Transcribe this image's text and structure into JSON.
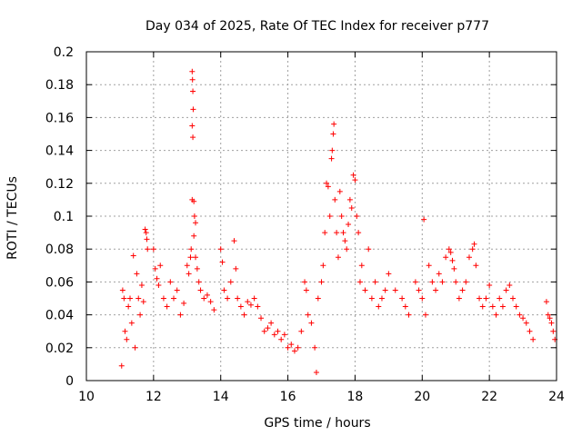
{
  "chart_data": {
    "type": "scatter",
    "title": "Day 034 of 2025, Rate Of TEC Index for receiver p777",
    "xlabel": "GPS time / hours",
    "ylabel": "ROTI / TECUs",
    "xlim": [
      10,
      24
    ],
    "ylim": [
      0,
      0.2
    ],
    "xticks": [
      10,
      12,
      14,
      16,
      18,
      20,
      22,
      24
    ],
    "yticks": [
      0,
      0.02,
      0.04,
      0.06,
      0.08,
      0.1,
      0.12,
      0.14,
      0.16,
      0.18,
      0.2
    ],
    "xtick_labels": [
      "10",
      "12",
      "14",
      "16",
      "18",
      "20",
      "22",
      "24"
    ],
    "ytick_labels": [
      "0",
      "0.02",
      "0.04",
      "0.06",
      "0.08",
      "0.1",
      "0.12",
      "0.14",
      "0.16",
      "0.18",
      "0.2"
    ],
    "grid": true,
    "marker": "+",
    "series": [
      {
        "name": "ROTI",
        "color": "#ff0000",
        "points": [
          [
            11.05,
            0.009
          ],
          [
            11.08,
            0.055
          ],
          [
            11.12,
            0.05
          ],
          [
            11.15,
            0.03
          ],
          [
            11.2,
            0.025
          ],
          [
            11.25,
            0.045
          ],
          [
            11.3,
            0.05
          ],
          [
            11.35,
            0.035
          ],
          [
            11.4,
            0.076
          ],
          [
            11.45,
            0.02
          ],
          [
            11.5,
            0.065
          ],
          [
            11.55,
            0.05
          ],
          [
            11.6,
            0.04
          ],
          [
            11.65,
            0.058
          ],
          [
            11.7,
            0.048
          ],
          [
            11.75,
            0.092
          ],
          [
            11.78,
            0.09
          ],
          [
            11.8,
            0.086
          ],
          [
            11.82,
            0.08
          ],
          [
            12.0,
            0.08
          ],
          [
            12.05,
            0.068
          ],
          [
            12.1,
            0.062
          ],
          [
            12.15,
            0.058
          ],
          [
            12.2,
            0.07
          ],
          [
            12.3,
            0.05
          ],
          [
            12.4,
            0.045
          ],
          [
            12.5,
            0.06
          ],
          [
            12.6,
            0.05
          ],
          [
            12.7,
            0.055
          ],
          [
            12.8,
            0.04
          ],
          [
            12.9,
            0.047
          ],
          [
            13.0,
            0.07
          ],
          [
            13.05,
            0.065
          ],
          [
            13.1,
            0.075
          ],
          [
            13.12,
            0.08
          ],
          [
            13.15,
            0.188
          ],
          [
            13.16,
            0.183
          ],
          [
            13.17,
            0.176
          ],
          [
            13.18,
            0.165
          ],
          [
            13.15,
            0.155
          ],
          [
            13.17,
            0.148
          ],
          [
            13.15,
            0.11
          ],
          [
            13.2,
            0.109
          ],
          [
            13.22,
            0.1
          ],
          [
            13.25,
            0.096
          ],
          [
            13.2,
            0.088
          ],
          [
            13.25,
            0.075
          ],
          [
            13.3,
            0.068
          ],
          [
            13.35,
            0.06
          ],
          [
            13.4,
            0.055
          ],
          [
            13.5,
            0.05
          ],
          [
            13.6,
            0.052
          ],
          [
            13.7,
            0.048
          ],
          [
            13.8,
            0.043
          ],
          [
            14.0,
            0.08
          ],
          [
            14.05,
            0.072
          ],
          [
            14.1,
            0.055
          ],
          [
            14.2,
            0.05
          ],
          [
            14.3,
            0.06
          ],
          [
            14.4,
            0.085
          ],
          [
            14.45,
            0.068
          ],
          [
            14.5,
            0.05
          ],
          [
            14.6,
            0.045
          ],
          [
            14.7,
            0.04
          ],
          [
            14.8,
            0.048
          ],
          [
            14.9,
            0.046
          ],
          [
            15.0,
            0.05
          ],
          [
            15.1,
            0.045
          ],
          [
            15.2,
            0.038
          ],
          [
            15.3,
            0.03
          ],
          [
            15.4,
            0.032
          ],
          [
            15.5,
            0.035
          ],
          [
            15.6,
            0.028
          ],
          [
            15.7,
            0.03
          ],
          [
            15.8,
            0.025
          ],
          [
            15.9,
            0.028
          ],
          [
            16.0,
            0.02
          ],
          [
            16.1,
            0.022
          ],
          [
            16.2,
            0.018
          ],
          [
            16.3,
            0.02
          ],
          [
            16.4,
            0.03
          ],
          [
            16.5,
            0.06
          ],
          [
            16.55,
            0.055
          ],
          [
            16.6,
            0.04
          ],
          [
            16.7,
            0.035
          ],
          [
            16.8,
            0.02
          ],
          [
            16.85,
            0.005
          ],
          [
            16.9,
            0.05
          ],
          [
            17.0,
            0.06
          ],
          [
            17.05,
            0.07
          ],
          [
            17.1,
            0.09
          ],
          [
            17.15,
            0.12
          ],
          [
            17.2,
            0.118
          ],
          [
            17.25,
            0.1
          ],
          [
            17.3,
            0.135
          ],
          [
            17.32,
            0.14
          ],
          [
            17.35,
            0.15
          ],
          [
            17.37,
            0.156
          ],
          [
            17.4,
            0.11
          ],
          [
            17.45,
            0.09
          ],
          [
            17.5,
            0.075
          ],
          [
            17.55,
            0.115
          ],
          [
            17.6,
            0.1
          ],
          [
            17.65,
            0.09
          ],
          [
            17.7,
            0.085
          ],
          [
            17.75,
            0.08
          ],
          [
            17.8,
            0.095
          ],
          [
            17.85,
            0.11
          ],
          [
            17.9,
            0.105
          ],
          [
            17.95,
            0.125
          ],
          [
            18.0,
            0.122
          ],
          [
            18.05,
            0.1
          ],
          [
            18.1,
            0.09
          ],
          [
            18.15,
            0.06
          ],
          [
            18.2,
            0.07
          ],
          [
            18.3,
            0.055
          ],
          [
            18.4,
            0.08
          ],
          [
            18.5,
            0.05
          ],
          [
            18.6,
            0.06
          ],
          [
            18.7,
            0.045
          ],
          [
            18.8,
            0.05
          ],
          [
            18.9,
            0.055
          ],
          [
            19.0,
            0.065
          ],
          [
            19.2,
            0.055
          ],
          [
            19.4,
            0.05
          ],
          [
            19.5,
            0.045
          ],
          [
            19.6,
            0.04
          ],
          [
            19.8,
            0.06
          ],
          [
            19.9,
            0.055
          ],
          [
            20.0,
            0.05
          ],
          [
            20.05,
            0.098
          ],
          [
            20.1,
            0.04
          ],
          [
            20.2,
            0.07
          ],
          [
            20.3,
            0.06
          ],
          [
            20.4,
            0.055
          ],
          [
            20.5,
            0.065
          ],
          [
            20.6,
            0.06
          ],
          [
            20.7,
            0.075
          ],
          [
            20.8,
            0.08
          ],
          [
            20.85,
            0.078
          ],
          [
            20.9,
            0.073
          ],
          [
            20.95,
            0.068
          ],
          [
            21.0,
            0.06
          ],
          [
            21.1,
            0.05
          ],
          [
            21.2,
            0.055
          ],
          [
            21.3,
            0.06
          ],
          [
            21.4,
            0.075
          ],
          [
            21.5,
            0.08
          ],
          [
            21.55,
            0.083
          ],
          [
            21.6,
            0.07
          ],
          [
            21.7,
            0.05
          ],
          [
            21.8,
            0.045
          ],
          [
            21.9,
            0.05
          ],
          [
            22.0,
            0.058
          ],
          [
            22.1,
            0.045
          ],
          [
            22.2,
            0.04
          ],
          [
            22.3,
            0.05
          ],
          [
            22.4,
            0.045
          ],
          [
            22.5,
            0.055
          ],
          [
            22.6,
            0.058
          ],
          [
            22.7,
            0.05
          ],
          [
            22.8,
            0.045
          ],
          [
            22.9,
            0.04
          ],
          [
            23.0,
            0.038
          ],
          [
            23.1,
            0.035
          ],
          [
            23.2,
            0.03
          ],
          [
            23.3,
            0.025
          ],
          [
            23.7,
            0.048
          ],
          [
            23.75,
            0.04
          ],
          [
            23.8,
            0.038
          ],
          [
            23.85,
            0.035
          ],
          [
            23.9,
            0.03
          ],
          [
            23.95,
            0.025
          ]
        ]
      }
    ]
  }
}
